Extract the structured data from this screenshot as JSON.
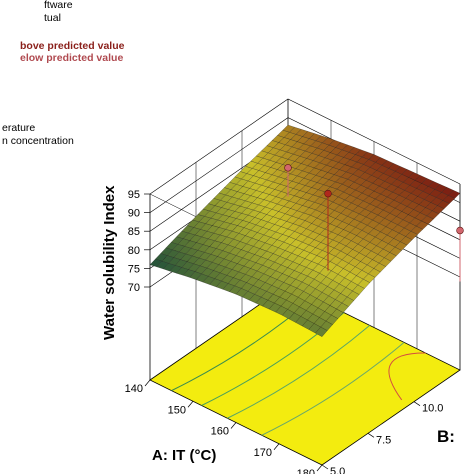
{
  "legend": {
    "line1": "ftware",
    "line2": "tual",
    "above": "bove predicted value",
    "below": "elow predicted value",
    "factor_a": "erature",
    "factor_b": "n concentration"
  },
  "colors": {
    "above": "#b0281c",
    "below": "#d2666e",
    "floor": "#f3ec0f",
    "surface_low": "#1f4f3a",
    "surface_mid": "#c9c02a",
    "surface_high": "#7a1a12",
    "frame": "#000000"
  },
  "chart_data": {
    "type": "surface3d",
    "zlabel": "Water solubility Index",
    "xlabel": "A: IT (°C)",
    "ylabel": "B:",
    "zlim": [
      70,
      95
    ],
    "xlim": [
      140,
      180
    ],
    "ylim": [
      5.0,
      12.5
    ],
    "z_ticks": [
      "70",
      "75",
      "80",
      "85",
      "90",
      "95"
    ],
    "x_ticks": [
      "140",
      "150",
      "160",
      "170",
      "180"
    ],
    "y_ticks": [
      "5.0",
      "7.5",
      "10.0"
    ],
    "surface": {
      "A": [
        140,
        150,
        160,
        170,
        180
      ],
      "B": [
        5.0,
        7.5,
        10.0,
        12.5
      ],
      "z": [
        [
          76.0,
          80.5,
          84.5,
          88.0
        ],
        [
          78.0,
          83.0,
          86.5,
          90.0
        ],
        [
          79.5,
          84.5,
          88.5,
          91.5
        ],
        [
          80.0,
          85.5,
          89.0,
          92.0
        ],
        [
          79.5,
          85.0,
          89.0,
          92.5
        ]
      ]
    },
    "design_points": [
      {
        "A": 140,
        "B": 12.5,
        "z": 76.5,
        "status": "below"
      },
      {
        "A": 160,
        "B": 10.0,
        "z": 89.5,
        "status": "above"
      },
      {
        "A": 180,
        "B": 12.5,
        "z": 82.5,
        "status": "below"
      }
    ]
  }
}
